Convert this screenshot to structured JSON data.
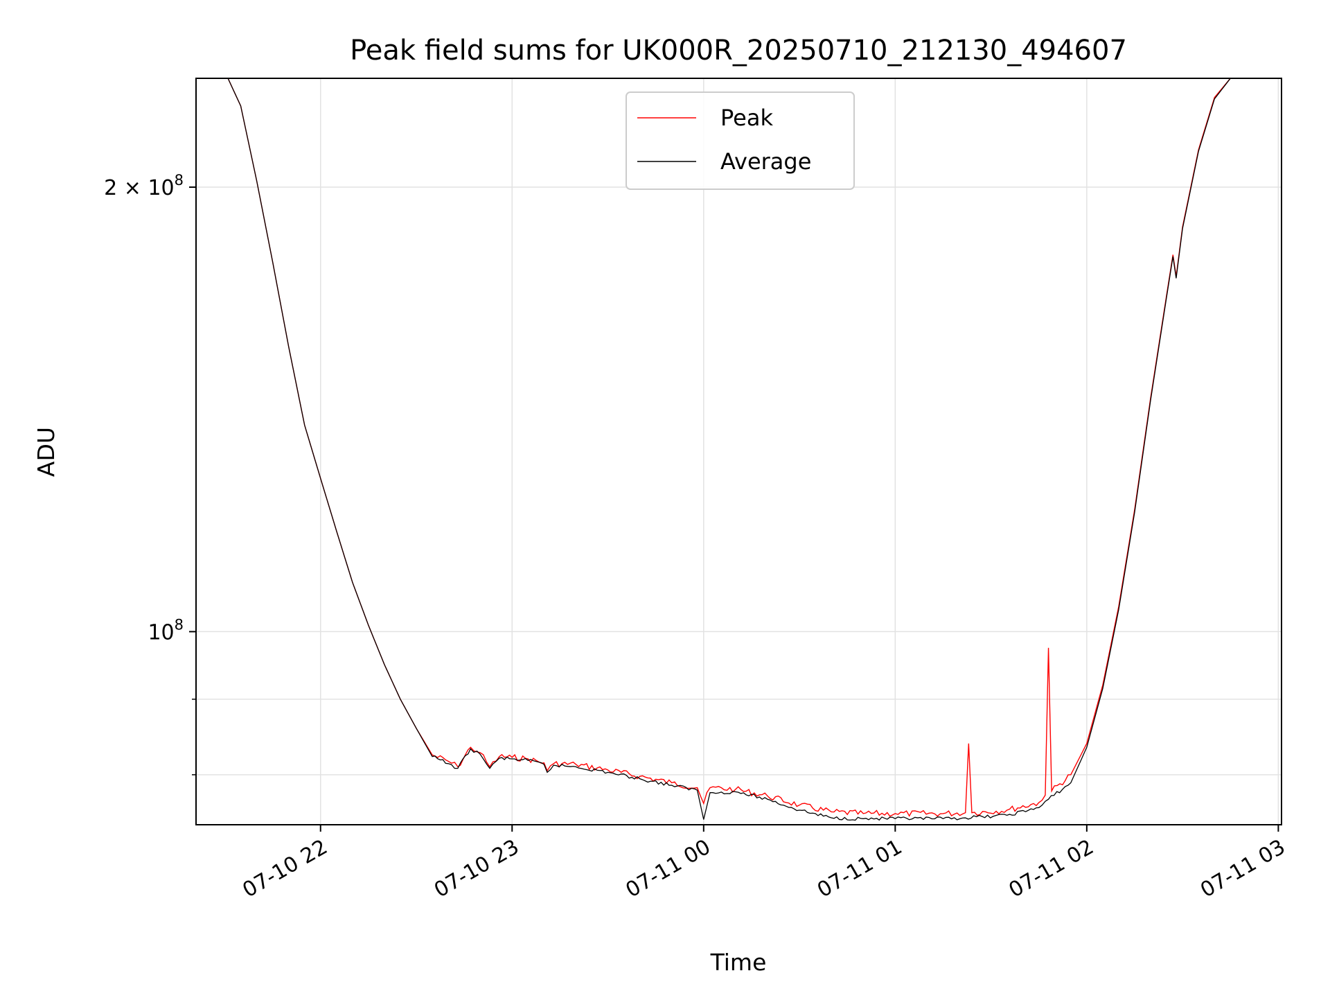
{
  "chart_data": {
    "type": "line",
    "title": "Peak field sums for UK000R_20250710_212130_494607",
    "xlabel": "Time",
    "ylabel": "ADU",
    "x_scale": "time",
    "y_scale": "log",
    "xlim": [
      "2025-07-10 21:21",
      "2025-07-11 03:01"
    ],
    "ylim": [
      74000000,
      237000000
    ],
    "grid": true,
    "legend_position": "upper-center",
    "x_ticks": [
      {
        "value": "2025-07-10 22:00",
        "label": "07-10 22"
      },
      {
        "value": "2025-07-10 23:00",
        "label": "07-10 23"
      },
      {
        "value": "2025-07-11 00:00",
        "label": "07-11 00"
      },
      {
        "value": "2025-07-11 01:00",
        "label": "07-11 01"
      },
      {
        "value": "2025-07-11 02:00",
        "label": "07-11 02"
      },
      {
        "value": "2025-07-11 03:00",
        "label": "07-11 03"
      }
    ],
    "y_major_ticks": [
      {
        "value": 100000000,
        "base": "10",
        "exp": "8",
        "coef": ""
      },
      {
        "value": 200000000,
        "base": "10",
        "exp": "8",
        "coef": "2 × "
      }
    ],
    "y_minor_ticks": [
      80000000,
      90000000
    ],
    "series": [
      {
        "name": "Peak",
        "color": "#ff0000",
        "points": [
          [
            "2025-07-10 21:21",
            237000000
          ],
          [
            "2025-07-10 21:27",
            237000000
          ],
          [
            "2025-07-10 21:31",
            237000000
          ],
          [
            "2025-07-10 21:35",
            227000000
          ],
          [
            "2025-07-10 21:40",
            202000000
          ],
          [
            "2025-07-10 21:45",
            178000000
          ],
          [
            "2025-07-10 21:50",
            156000000
          ],
          [
            "2025-07-10 21:55",
            138000000
          ],
          [
            "2025-07-10 22:00",
            127000000
          ],
          [
            "2025-07-10 22:05",
            117000000
          ],
          [
            "2025-07-10 22:10",
            108000000
          ],
          [
            "2025-07-10 22:15",
            101000000
          ],
          [
            "2025-07-10 22:20",
            95000000
          ],
          [
            "2025-07-10 22:25",
            90000000
          ],
          [
            "2025-07-10 22:30",
            86000000
          ],
          [
            "2025-07-10 22:35",
            82500000
          ],
          [
            "2025-07-10 22:40",
            81700000
          ],
          [
            "2025-07-10 22:43",
            81000000
          ],
          [
            "2025-07-10 22:47",
            83500000
          ],
          [
            "2025-07-10 22:50",
            82800000
          ],
          [
            "2025-07-10 22:53",
            81000000
          ],
          [
            "2025-07-10 22:56",
            82300000
          ],
          [
            "2025-07-10 23:00",
            82200000
          ],
          [
            "2025-07-10 23:05",
            82000000
          ],
          [
            "2025-07-10 23:10",
            81500000
          ],
          [
            "2025-07-10 23:11",
            80500000
          ],
          [
            "2025-07-10 23:13",
            81400000
          ],
          [
            "2025-07-10 23:20",
            81300000
          ],
          [
            "2025-07-10 23:30",
            80600000
          ],
          [
            "2025-07-10 23:40",
            79800000
          ],
          [
            "2025-07-10 23:50",
            79000000
          ],
          [
            "2025-07-10 23:58",
            78400000
          ],
          [
            "2025-07-11 00:00",
            76500000
          ],
          [
            "2025-07-11 00:02",
            78400000
          ],
          [
            "2025-07-11 00:10",
            78200000
          ],
          [
            "2025-07-11 00:20",
            77400000
          ],
          [
            "2025-07-11 00:30",
            76300000
          ],
          [
            "2025-07-11 00:40",
            75500000
          ],
          [
            "2025-07-11 00:50",
            75300000
          ],
          [
            "2025-07-11 01:00",
            75300000
          ],
          [
            "2025-07-11 01:15",
            75300000
          ],
          [
            "2025-07-11 01:22",
            75400000
          ],
          [
            "2025-07-11 01:23",
            84000000
          ],
          [
            "2025-07-11 01:24",
            75400000
          ],
          [
            "2025-07-11 01:35",
            75700000
          ],
          [
            "2025-07-11 01:45",
            76600000
          ],
          [
            "2025-07-11 01:47",
            77500000
          ],
          [
            "2025-07-11 01:48",
            97500000
          ],
          [
            "2025-07-11 01:49",
            78000000
          ],
          [
            "2025-07-11 01:55",
            80000000
          ],
          [
            "2025-07-11 02:00",
            84000000
          ],
          [
            "2025-07-11 02:05",
            92000000
          ],
          [
            "2025-07-11 02:10",
            104000000
          ],
          [
            "2025-07-11 02:15",
            121000000
          ],
          [
            "2025-07-11 02:20",
            144000000
          ],
          [
            "2025-07-11 02:25",
            169000000
          ],
          [
            "2025-07-11 02:27",
            180000000
          ],
          [
            "2025-07-11 02:28",
            174000000
          ],
          [
            "2025-07-11 02:30",
            188000000
          ],
          [
            "2025-07-11 02:35",
            212000000
          ],
          [
            "2025-07-11 02:40",
            230000000
          ],
          [
            "2025-07-11 02:45",
            237000000
          ],
          [
            "2025-07-11 03:01",
            237000000
          ]
        ]
      },
      {
        "name": "Average",
        "color": "#000000",
        "points": [
          [
            "2025-07-10 21:21",
            237000000
          ],
          [
            "2025-07-10 21:27",
            237000000
          ],
          [
            "2025-07-10 21:31",
            237000000
          ],
          [
            "2025-07-10 21:35",
            227000000
          ],
          [
            "2025-07-10 21:40",
            202000000
          ],
          [
            "2025-07-10 21:45",
            178000000
          ],
          [
            "2025-07-10 21:50",
            156000000
          ],
          [
            "2025-07-10 21:55",
            138000000
          ],
          [
            "2025-07-10 22:00",
            127000000
          ],
          [
            "2025-07-10 22:05",
            117000000
          ],
          [
            "2025-07-10 22:10",
            108000000
          ],
          [
            "2025-07-10 22:15",
            101000000
          ],
          [
            "2025-07-10 22:20",
            95000000
          ],
          [
            "2025-07-10 22:25",
            90000000
          ],
          [
            "2025-07-10 22:30",
            86000000
          ],
          [
            "2025-07-10 22:35",
            82300000
          ],
          [
            "2025-07-10 22:40",
            81400000
          ],
          [
            "2025-07-10 22:43",
            80800000
          ],
          [
            "2025-07-10 22:47",
            83300000
          ],
          [
            "2025-07-10 22:50",
            82600000
          ],
          [
            "2025-07-10 22:53",
            80800000
          ],
          [
            "2025-07-10 22:56",
            82100000
          ],
          [
            "2025-07-10 23:00",
            82000000
          ],
          [
            "2025-07-10 23:05",
            81800000
          ],
          [
            "2025-07-10 23:10",
            81300000
          ],
          [
            "2025-07-10 23:11",
            80300000
          ],
          [
            "2025-07-10 23:13",
            81200000
          ],
          [
            "2025-07-10 23:20",
            81000000
          ],
          [
            "2025-07-10 23:30",
            80300000
          ],
          [
            "2025-07-10 23:40",
            79500000
          ],
          [
            "2025-07-10 23:50",
            78700000
          ],
          [
            "2025-07-10 23:58",
            78100000
          ],
          [
            "2025-07-11 00:00",
            74600000
          ],
          [
            "2025-07-11 00:02",
            77800000
          ],
          [
            "2025-07-11 00:10",
            77900000
          ],
          [
            "2025-07-11 00:20",
            77000000
          ],
          [
            "2025-07-11 00:30",
            75700000
          ],
          [
            "2025-07-11 00:40",
            74800000
          ],
          [
            "2025-07-11 00:50",
            74700000
          ],
          [
            "2025-07-11 01:00",
            74700000
          ],
          [
            "2025-07-11 01:15",
            74700000
          ],
          [
            "2025-07-11 01:22",
            74800000
          ],
          [
            "2025-07-11 01:35",
            75100000
          ],
          [
            "2025-07-11 01:45",
            76000000
          ],
          [
            "2025-07-11 01:48",
            77000000
          ],
          [
            "2025-07-11 01:55",
            79000000
          ],
          [
            "2025-07-11 02:00",
            83500000
          ],
          [
            "2025-07-11 02:05",
            91500000
          ],
          [
            "2025-07-11 02:10",
            103500000
          ],
          [
            "2025-07-11 02:15",
            120500000
          ],
          [
            "2025-07-11 02:20",
            143500000
          ],
          [
            "2025-07-11 02:25",
            168500000
          ],
          [
            "2025-07-11 02:27",
            179500000
          ],
          [
            "2025-07-11 02:28",
            173500000
          ],
          [
            "2025-07-11 02:30",
            187500000
          ],
          [
            "2025-07-11 02:35",
            211500000
          ],
          [
            "2025-07-11 02:40",
            229500000
          ],
          [
            "2025-07-11 02:45",
            237000000
          ],
          [
            "2025-07-11 03:01",
            237000000
          ]
        ]
      }
    ]
  }
}
